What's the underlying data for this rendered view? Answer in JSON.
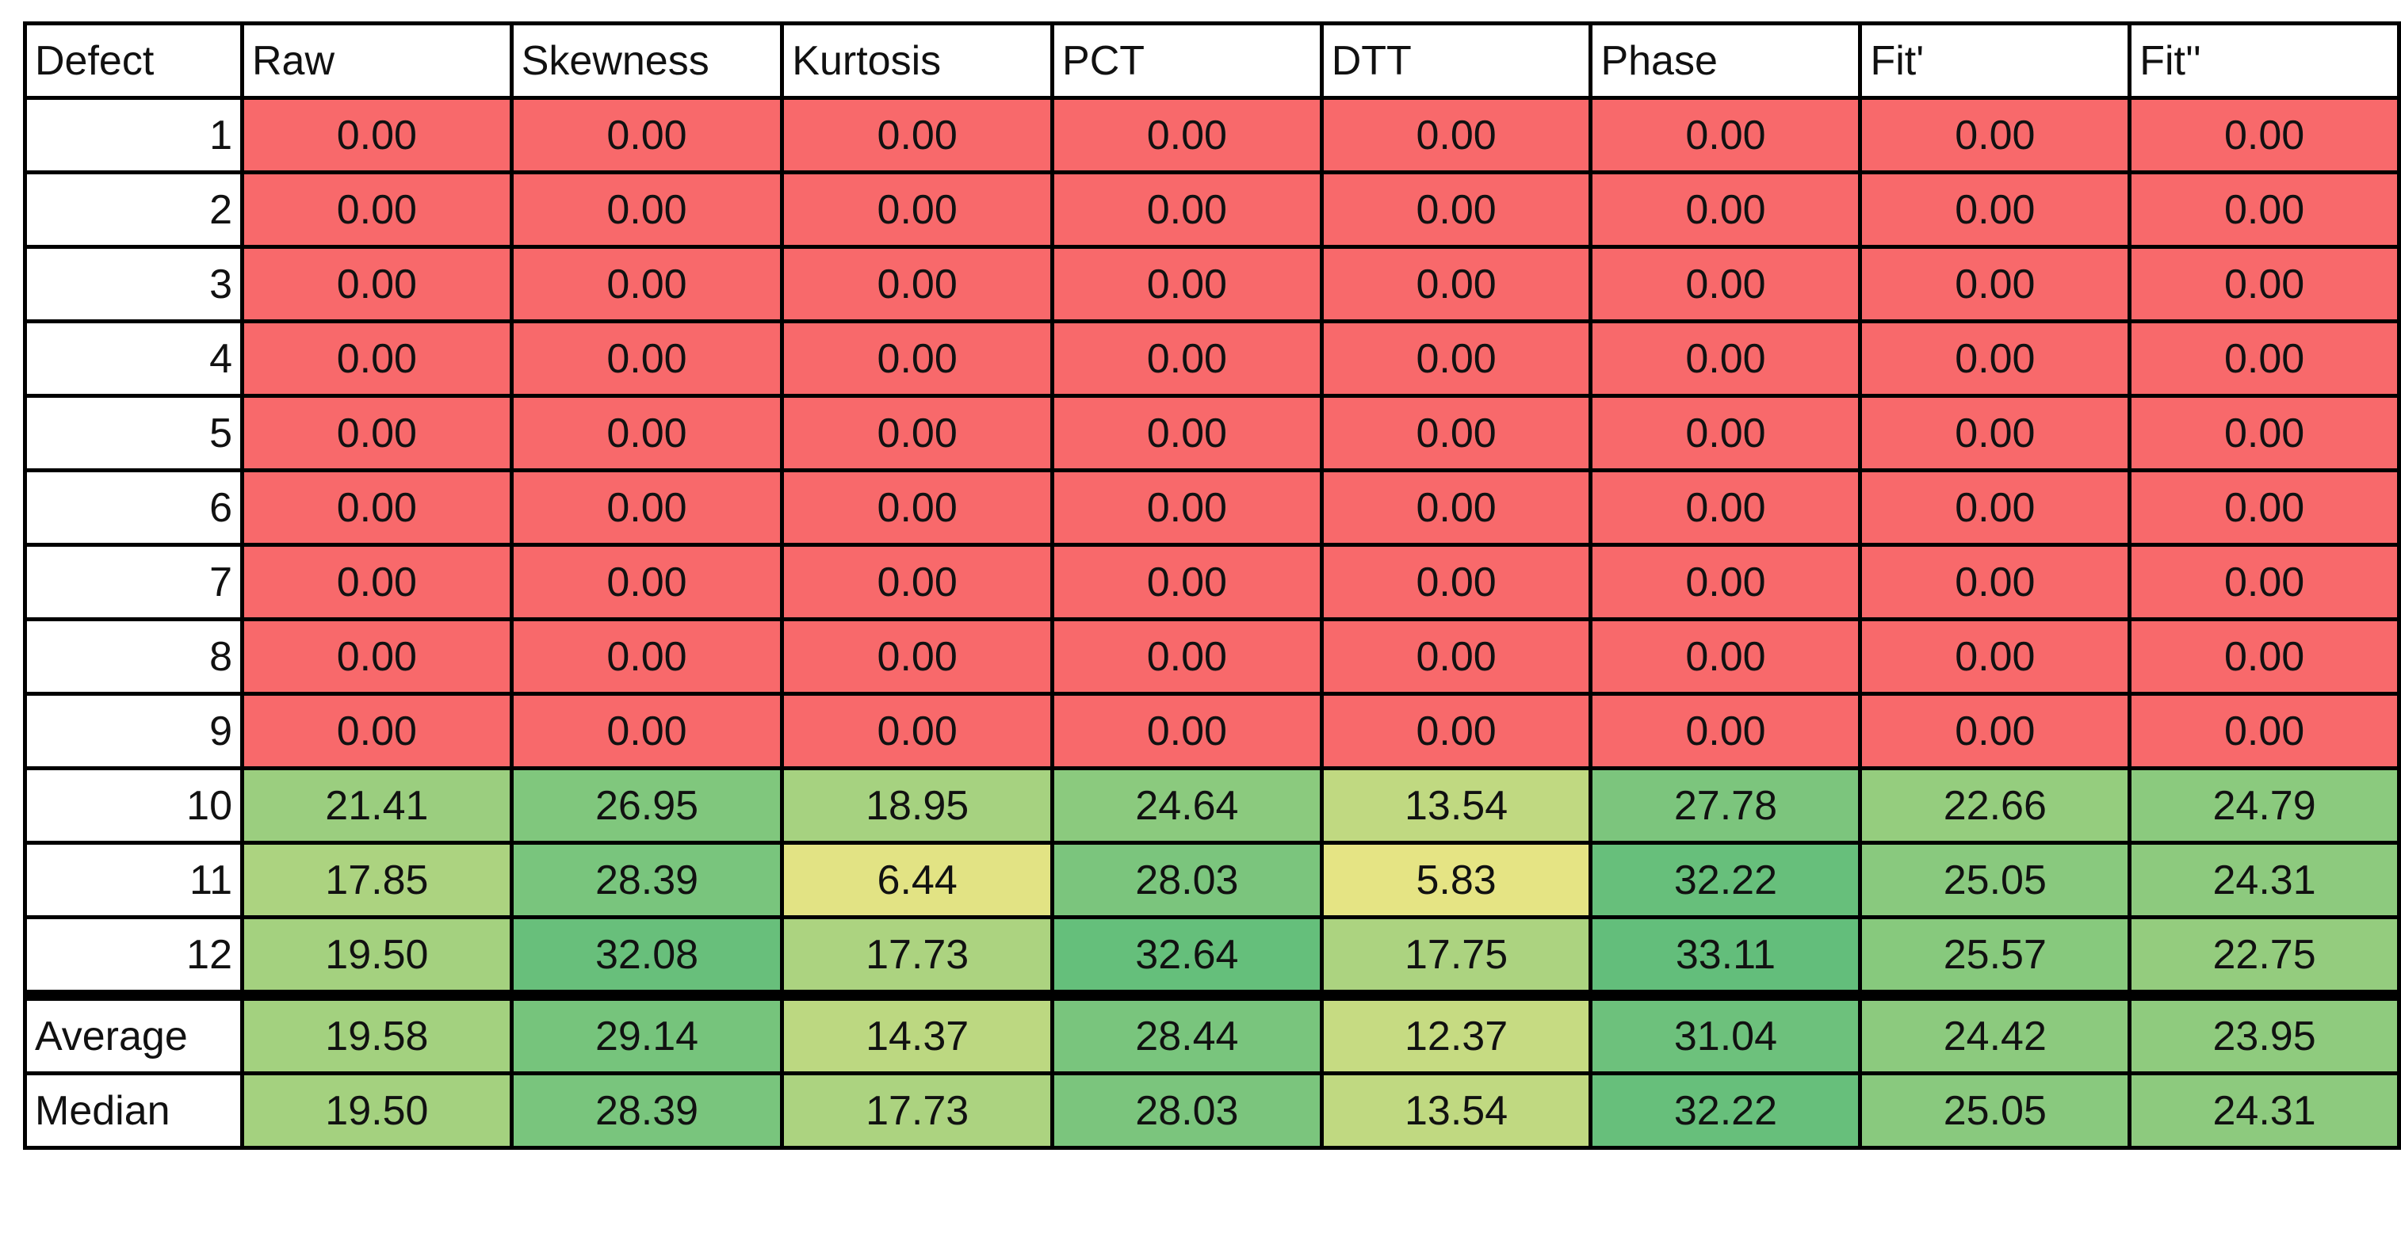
{
  "table": {
    "header": [
      "Defect",
      "Raw",
      "Skewness",
      "Kurtosis",
      "PCT",
      "DTT",
      "Phase",
      "Fit'",
      "Fit''"
    ],
    "rows": [
      [
        "1",
        "0.00",
        "0.00",
        "0.00",
        "0.00",
        "0.00",
        "0.00",
        "0.00",
        "0.00"
      ],
      [
        "2",
        "0.00",
        "0.00",
        "0.00",
        "0.00",
        "0.00",
        "0.00",
        "0.00",
        "0.00"
      ],
      [
        "3",
        "0.00",
        "0.00",
        "0.00",
        "0.00",
        "0.00",
        "0.00",
        "0.00",
        "0.00"
      ],
      [
        "4",
        "0.00",
        "0.00",
        "0.00",
        "0.00",
        "0.00",
        "0.00",
        "0.00",
        "0.00"
      ],
      [
        "5",
        "0.00",
        "0.00",
        "0.00",
        "0.00",
        "0.00",
        "0.00",
        "0.00",
        "0.00"
      ],
      [
        "6",
        "0.00",
        "0.00",
        "0.00",
        "0.00",
        "0.00",
        "0.00",
        "0.00",
        "0.00"
      ],
      [
        "7",
        "0.00",
        "0.00",
        "0.00",
        "0.00",
        "0.00",
        "0.00",
        "0.00",
        "0.00"
      ],
      [
        "8",
        "0.00",
        "0.00",
        "0.00",
        "0.00",
        "0.00",
        "0.00",
        "0.00",
        "0.00"
      ],
      [
        "9",
        "0.00",
        "0.00",
        "0.00",
        "0.00",
        "0.00",
        "0.00",
        "0.00",
        "0.00"
      ],
      [
        "10",
        "21.41",
        "26.95",
        "18.95",
        "24.64",
        "13.54",
        "27.78",
        "22.66",
        "24.79"
      ],
      [
        "11",
        "17.85",
        "28.39",
        "6.44",
        "28.03",
        "5.83",
        "32.22",
        "25.05",
        "24.31"
      ],
      [
        "12",
        "19.50",
        "32.08",
        "17.73",
        "32.64",
        "17.75",
        "33.11",
        "25.57",
        "22.75"
      ]
    ],
    "summary_rows": [
      [
        "Average",
        "19.58",
        "29.14",
        "14.37",
        "28.44",
        "12.37",
        "31.04",
        "24.42",
        "23.95"
      ],
      [
        "Median",
        "19.50",
        "28.39",
        "17.73",
        "28.03",
        "13.54",
        "32.22",
        "25.05",
        "24.31"
      ]
    ]
  }
}
